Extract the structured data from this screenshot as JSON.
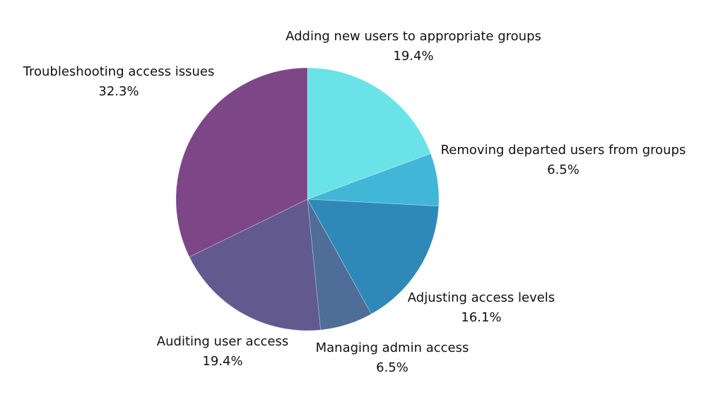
{
  "chart_data": {
    "type": "pie",
    "start": "top",
    "direction": "clockwise",
    "slices": [
      {
        "label": "Adding new users to appropriate groups",
        "value": 19.4,
        "display": "19.4%",
        "color": "#6ae3e8"
      },
      {
        "label": "Removing departed users from groups",
        "value": 6.5,
        "display": "6.5%",
        "color": "#42b6d6"
      },
      {
        "label": "Adjusting access levels",
        "value": 16.1,
        "display": "16.1%",
        "color": "#2e89b9"
      },
      {
        "label": "Managing admin access",
        "value": 6.5,
        "display": "6.5%",
        "color": "#4e6d98"
      },
      {
        "label": "Auditing user access",
        "value": 19.4,
        "display": "19.4%",
        "color": "#625a8f"
      },
      {
        "label": "Troubleshooting access issues",
        "value": 32.3,
        "display": "32.3%",
        "color": "#7d4687"
      }
    ]
  }
}
